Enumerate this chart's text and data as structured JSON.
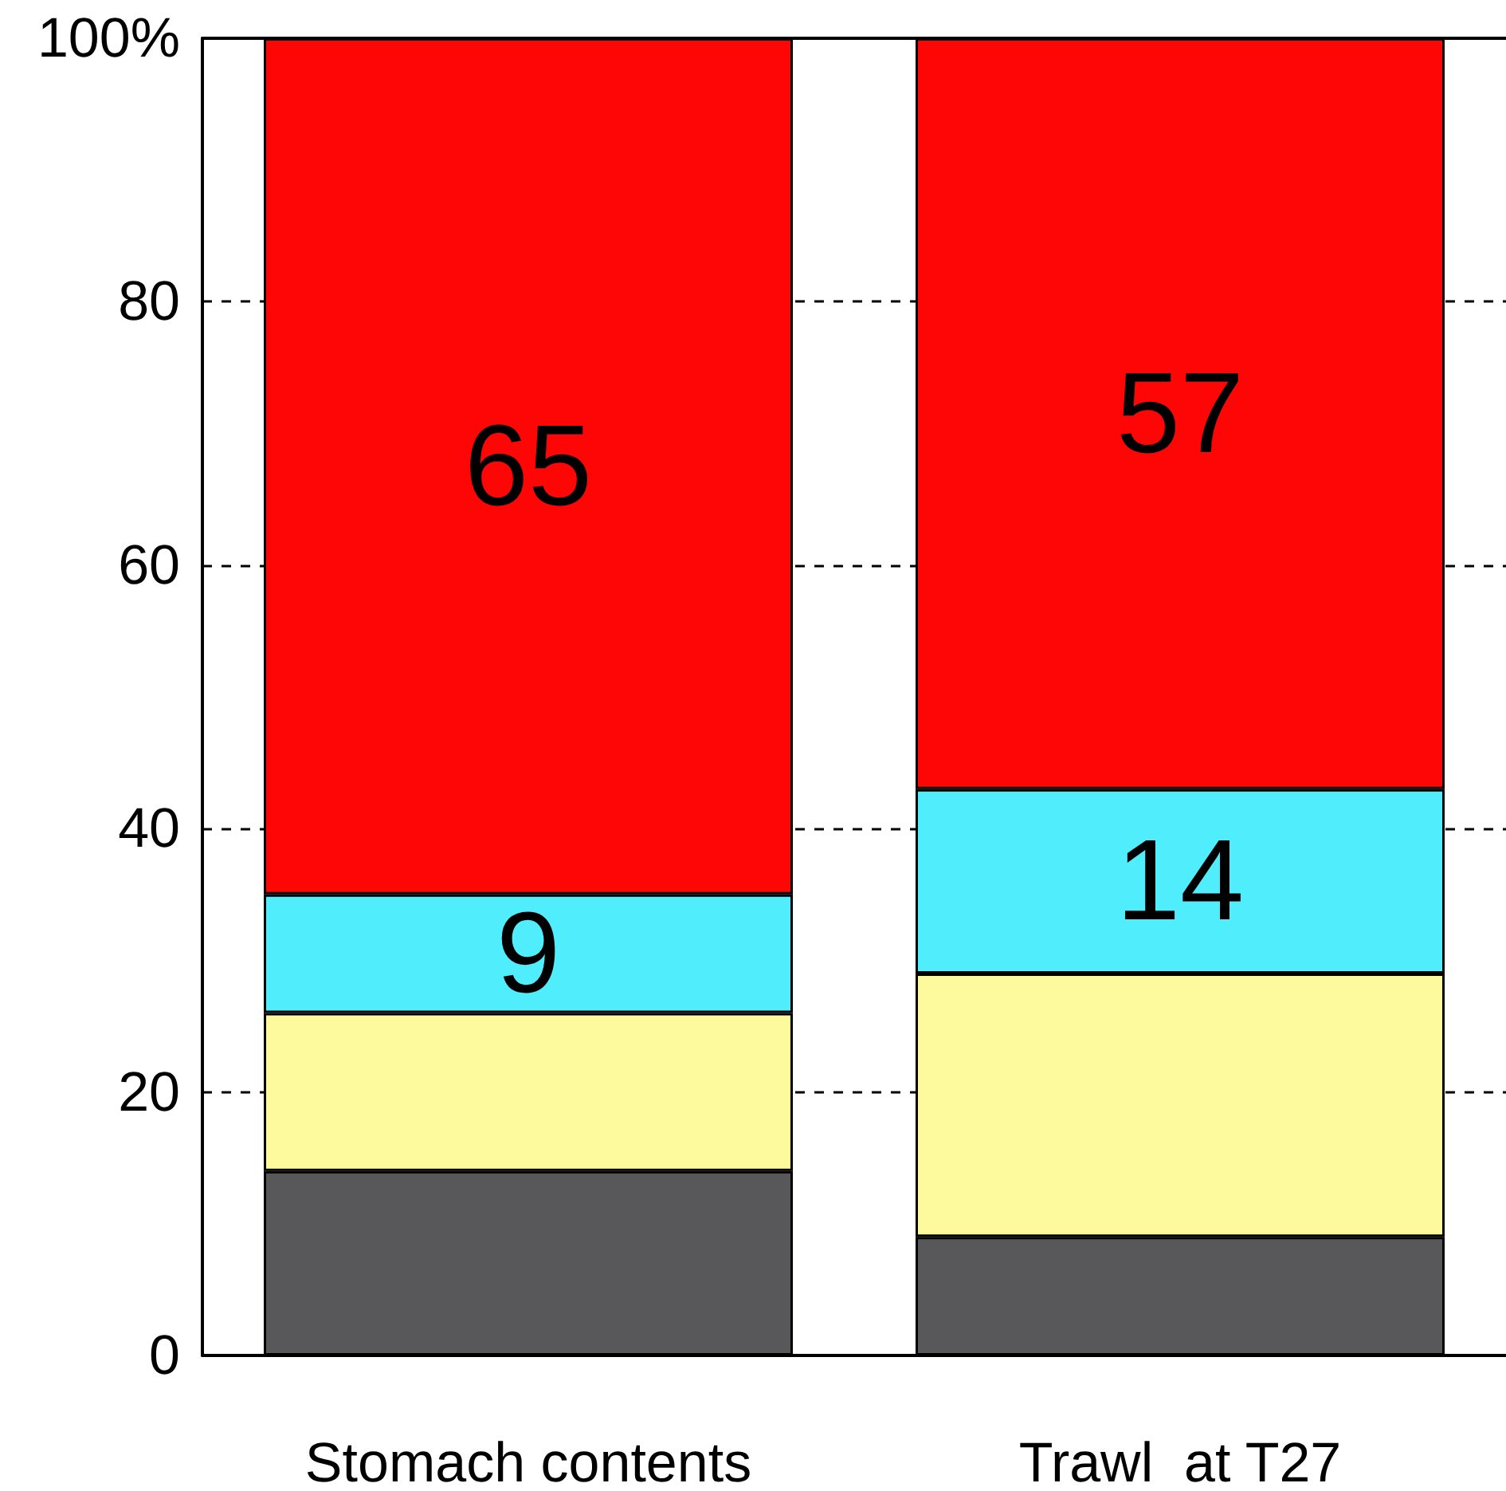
{
  "chart_data": {
    "type": "bar",
    "stacked": true,
    "categories": [
      "Stomach contents",
      "Trawl  at T27"
    ],
    "series": [
      {
        "color": "#58585a",
        "values": [
          14,
          9
        ],
        "value_labels": [
          null,
          null
        ]
      },
      {
        "color": "#fdf99d",
        "values": [
          12,
          20
        ],
        "value_labels": [
          null,
          null
        ]
      },
      {
        "color": "#50eefc",
        "values": [
          9,
          14
        ],
        "value_labels": [
          "9",
          "14"
        ]
      },
      {
        "color": "#fe0606",
        "values": [
          65,
          57
        ],
        "value_labels": [
          "65",
          "57"
        ]
      }
    ],
    "ylim": [
      0,
      100
    ],
    "yticks": [
      0,
      20,
      40,
      60,
      80,
      {
        "value": 100,
        "label": "100%"
      }
    ],
    "grid": "y",
    "line_style": "dashed"
  }
}
